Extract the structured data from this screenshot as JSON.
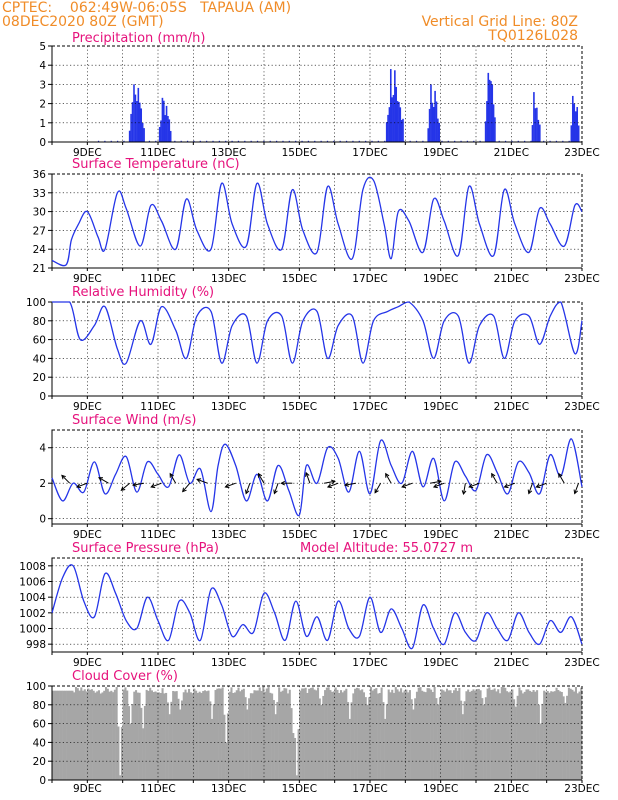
{
  "header": {
    "source_line": "CPTEC:    062:49W-06:05S   TAPAUA (AM)",
    "date_line": "08DEC2020 80Z (GMT)",
    "grid_note": "Vertical Grid Line: 80Z",
    "code": "TQ0126L028"
  },
  "colors": {
    "header": "#f08c28",
    "panel_title": "#e6127c",
    "series": "#2535e8",
    "cloud": "#a6a6a6",
    "arrows": "#000000"
  },
  "chart_data": [
    {
      "id": "precip",
      "type": "bar",
      "title": "Precipitation (mm/h)",
      "ylim": [
        0,
        5
      ],
      "yticks": [
        0,
        1,
        2,
        3,
        4,
        5
      ],
      "xlim_days": [
        8,
        23
      ],
      "xtick_labels": [
        "9DEC",
        "11DEC",
        "13DEC",
        "15DEC",
        "17DEC",
        "19DEC",
        "21DEC",
        "23DEC"
      ],
      "events": [
        {
          "day": 10.4,
          "peak": 3.0,
          "width": 0.45
        },
        {
          "day": 11.2,
          "peak": 2.3,
          "width": 0.35
        },
        {
          "day": 17.7,
          "peak": 3.8,
          "width": 0.5
        },
        {
          "day": 18.8,
          "peak": 3.0,
          "width": 0.35
        },
        {
          "day": 20.4,
          "peak": 3.6,
          "width": 0.3
        },
        {
          "day": 21.7,
          "peak": 2.6,
          "width": 0.25
        },
        {
          "day": 22.8,
          "peak": 2.4,
          "width": 0.25
        }
      ]
    },
    {
      "id": "temp",
      "type": "line",
      "title": "Surface Temperature (nC)",
      "ylim": [
        21,
        36
      ],
      "yticks": [
        21,
        24,
        27,
        30,
        33,
        36
      ],
      "xlim_days": [
        8,
        23
      ],
      "xtick_labels": [
        "9DEC",
        "11DEC",
        "13DEC",
        "15DEC",
        "17DEC",
        "19DEC",
        "21DEC",
        "23DEC"
      ],
      "x": [
        8.0,
        8.4,
        8.55,
        8.75,
        9.0,
        9.3,
        9.5,
        9.85,
        10.1,
        10.5,
        10.8,
        11.1,
        11.5,
        11.8,
        12.1,
        12.5,
        12.8,
        13.1,
        13.5,
        13.8,
        14.1,
        14.5,
        14.8,
        15.1,
        15.5,
        15.8,
        16.1,
        16.5,
        16.8,
        17.1,
        17.4,
        17.6,
        17.8,
        18.1,
        18.5,
        18.8,
        19.1,
        19.5,
        19.8,
        20.1,
        20.5,
        20.8,
        21.1,
        21.5,
        21.8,
        22.1,
        22.5,
        22.8,
        23.0
      ],
      "y": [
        22.2,
        21.5,
        25.5,
        28.0,
        30.0,
        26.0,
        24.0,
        33.0,
        30.5,
        24.5,
        31.0,
        28.5,
        24.0,
        32.0,
        27.0,
        24.0,
        34.5,
        28.0,
        24.5,
        34.5,
        28.0,
        24.0,
        33.5,
        27.0,
        23.5,
        34.0,
        28.0,
        22.5,
        33.5,
        35.0,
        28.0,
        22.5,
        30.0,
        28.5,
        23.5,
        32.0,
        28.5,
        23.0,
        34.0,
        28.0,
        23.0,
        33.5,
        28.0,
        23.5,
        30.5,
        28.0,
        24.5,
        31.0,
        30.0
      ]
    },
    {
      "id": "rh",
      "type": "line",
      "title": "Relative Humidity (%)",
      "ylim": [
        0,
        100
      ],
      "yticks": [
        0,
        20,
        40,
        60,
        80,
        100
      ],
      "xlim_days": [
        8,
        23
      ],
      "xtick_labels": [
        "9DEC",
        "11DEC",
        "13DEC",
        "15DEC",
        "17DEC",
        "19DEC",
        "21DEC",
        "23DEC"
      ],
      "x": [
        8.0,
        8.5,
        8.8,
        9.2,
        9.5,
        9.85,
        10.1,
        10.5,
        10.8,
        11.1,
        11.5,
        11.8,
        12.1,
        12.5,
        12.8,
        13.1,
        13.5,
        13.8,
        14.1,
        14.5,
        14.8,
        15.1,
        15.5,
        15.8,
        16.1,
        16.5,
        16.8,
        17.1,
        17.5,
        17.8,
        18.1,
        18.5,
        18.8,
        19.1,
        19.5,
        19.8,
        20.1,
        20.5,
        20.8,
        21.1,
        21.5,
        21.8,
        22.1,
        22.4,
        22.8,
        23.0
      ],
      "y": [
        100,
        100,
        60,
        75,
        95,
        50,
        35,
        80,
        55,
        95,
        70,
        40,
        85,
        90,
        35,
        75,
        85,
        35,
        80,
        85,
        35,
        80,
        90,
        40,
        75,
        85,
        35,
        80,
        90,
        95,
        100,
        80,
        40,
        80,
        85,
        35,
        75,
        85,
        40,
        80,
        85,
        55,
        85,
        100,
        45,
        80
      ]
    },
    {
      "id": "wind",
      "type": "line",
      "title": "Surface Wind (m/s)",
      "ylim": [
        -0.3,
        5
      ],
      "yticks": [
        0,
        2,
        4
      ],
      "xlim_days": [
        8,
        23
      ],
      "xtick_labels": [
        "9DEC",
        "11DEC",
        "13DEC",
        "15DEC",
        "17DEC",
        "19DEC",
        "21DEC",
        "23DEC"
      ],
      "x": [
        8.0,
        8.3,
        8.6,
        8.9,
        9.2,
        9.5,
        9.8,
        10.1,
        10.4,
        10.7,
        11.0,
        11.3,
        11.6,
        11.9,
        12.2,
        12.5,
        12.7,
        12.9,
        13.2,
        13.5,
        13.8,
        14.1,
        14.4,
        14.7,
        15.0,
        15.2,
        15.5,
        15.8,
        16.1,
        16.4,
        16.7,
        17.0,
        17.3,
        17.6,
        17.9,
        18.2,
        18.5,
        18.8,
        19.1,
        19.4,
        19.7,
        20.0,
        20.3,
        20.6,
        20.9,
        21.2,
        21.5,
        21.8,
        22.1,
        22.4,
        22.7,
        23.0
      ],
      "y": [
        2.3,
        1.0,
        2.0,
        1.5,
        3.2,
        1.4,
        2.5,
        3.5,
        1.5,
        3.2,
        2.5,
        1.8,
        3.6,
        2.0,
        2.8,
        0.4,
        3.0,
        4.2,
        3.0,
        1.0,
        2.5,
        1.0,
        3.0,
        1.6,
        0.2,
        3.0,
        2.0,
        4.0,
        3.4,
        1.5,
        3.8,
        1.4,
        4.4,
        3.0,
        2.0,
        3.8,
        1.8,
        3.4,
        1.0,
        3.2,
        2.4,
        1.6,
        3.6,
        2.6,
        1.4,
        3.2,
        2.6,
        1.4,
        3.6,
        2.4,
        4.5,
        1.8
      ],
      "arrows": [
        {
          "day": 8.5,
          "dir_deg": 135
        },
        {
          "day": 9.0,
          "dir_deg": 200
        },
        {
          "day": 9.6,
          "dir_deg": 150
        },
        {
          "day": 10.2,
          "dir_deg": 220
        },
        {
          "day": 10.6,
          "dir_deg": 190
        },
        {
          "day": 11.1,
          "dir_deg": 200
        },
        {
          "day": 11.5,
          "dir_deg": 120
        },
        {
          "day": 11.9,
          "dir_deg": 230
        },
        {
          "day": 12.4,
          "dir_deg": 160
        },
        {
          "day": 13.2,
          "dir_deg": 200
        },
        {
          "day": 13.6,
          "dir_deg": 250
        },
        {
          "day": 14.0,
          "dir_deg": 120
        },
        {
          "day": 14.4,
          "dir_deg": 250
        },
        {
          "day": 14.8,
          "dir_deg": 180
        },
        {
          "day": 15.3,
          "dir_deg": 110
        },
        {
          "day": 15.7,
          "dir_deg": 10
        },
        {
          "day": 16.1,
          "dir_deg": 200
        },
        {
          "day": 16.6,
          "dir_deg": 190
        },
        {
          "day": 17.3,
          "dir_deg": 240
        },
        {
          "day": 17.6,
          "dir_deg": 120
        },
        {
          "day": 18.2,
          "dir_deg": 200
        },
        {
          "day": 18.7,
          "dir_deg": 10
        },
        {
          "day": 19.1,
          "dir_deg": 200
        },
        {
          "day": 19.7,
          "dir_deg": 260
        },
        {
          "day": 20.1,
          "dir_deg": 200
        },
        {
          "day": 20.6,
          "dir_deg": 120
        },
        {
          "day": 21.1,
          "dir_deg": 200
        },
        {
          "day": 21.6,
          "dir_deg": 250
        },
        {
          "day": 22.0,
          "dir_deg": 200
        },
        {
          "day": 22.5,
          "dir_deg": 120
        },
        {
          "day": 22.9,
          "dir_deg": 250
        }
      ]
    },
    {
      "id": "pressure",
      "type": "line",
      "title": "Surface Pressure (hPa)",
      "subtitle": "Model Altitude: 55.0727 m",
      "ylim": [
        997,
        1009
      ],
      "yticks": [
        998,
        1000,
        1002,
        1004,
        1006,
        1008
      ],
      "xlim_days": [
        8,
        23
      ],
      "xtick_labels": [
        "9DEC",
        "11DEC",
        "13DEC",
        "15DEC",
        "17DEC",
        "19DEC",
        "21DEC",
        "23DEC"
      ],
      "x": [
        8.0,
        8.3,
        8.6,
        8.9,
        9.2,
        9.5,
        9.8,
        10.1,
        10.4,
        10.7,
        11.0,
        11.3,
        11.6,
        11.9,
        12.2,
        12.5,
        12.8,
        13.1,
        13.4,
        13.7,
        14.0,
        14.3,
        14.6,
        14.9,
        15.2,
        15.5,
        15.8,
        16.1,
        16.4,
        16.7,
        17.0,
        17.3,
        17.6,
        17.9,
        18.2,
        18.5,
        18.8,
        19.1,
        19.4,
        19.7,
        20.0,
        20.3,
        20.6,
        20.9,
        21.2,
        21.5,
        21.8,
        22.1,
        22.4,
        22.7,
        23.0
      ],
      "y": [
        1002.0,
        1006.5,
        1008.0,
        1003.5,
        1001.5,
        1007.0,
        1004.5,
        1001.0,
        1000.0,
        1004.0,
        1001.0,
        998.5,
        1003.5,
        1002.0,
        998.5,
        1005.0,
        1003.0,
        999.0,
        1000.5,
        999.5,
        1004.5,
        1002.0,
        998.5,
        1003.5,
        999.0,
        1001.5,
        998.5,
        1003.5,
        1000.0,
        999.0,
        1004.0,
        999.5,
        1002.5,
        1000.0,
        997.5,
        1003.0,
        1000.0,
        998.0,
        1002.0,
        999.5,
        998.5,
        1002.0,
        1000.0,
        998.5,
        1002.0,
        999.5,
        998.0,
        1001.0,
        999.5,
        1001.5,
        998.0
      ]
    },
    {
      "id": "cloud",
      "type": "bar",
      "title": "Cloud Cover (%)",
      "ylim": [
        0,
        100
      ],
      "yticks": [
        0,
        20,
        40,
        60,
        80,
        100
      ],
      "xlim_days": [
        8,
        23
      ],
      "xtick_labels": [
        "9DEC",
        "11DEC",
        "13DEC",
        "15DEC",
        "17DEC",
        "19DEC",
        "21DEC",
        "23DEC"
      ],
      "base_level": 96,
      "dips": [
        {
          "day": 9.9,
          "value": 5
        },
        {
          "day": 10.2,
          "value": 60
        },
        {
          "day": 10.55,
          "value": 55
        },
        {
          "day": 11.3,
          "value": 70
        },
        {
          "day": 11.6,
          "value": 75
        },
        {
          "day": 12.5,
          "value": 65
        },
        {
          "day": 12.9,
          "value": 40
        },
        {
          "day": 13.5,
          "value": 75
        },
        {
          "day": 14.3,
          "value": 70
        },
        {
          "day": 14.8,
          "value": 50
        },
        {
          "day": 14.9,
          "value": 5
        },
        {
          "day": 15.6,
          "value": 80
        },
        {
          "day": 16.4,
          "value": 65
        },
        {
          "day": 16.9,
          "value": 80
        },
        {
          "day": 17.4,
          "value": 65
        },
        {
          "day": 18.2,
          "value": 75
        },
        {
          "day": 18.9,
          "value": 80
        },
        {
          "day": 19.6,
          "value": 70
        },
        {
          "day": 20.2,
          "value": 80
        },
        {
          "day": 21.1,
          "value": 78
        },
        {
          "day": 21.8,
          "value": 60
        },
        {
          "day": 22.5,
          "value": 82
        }
      ]
    }
  ]
}
